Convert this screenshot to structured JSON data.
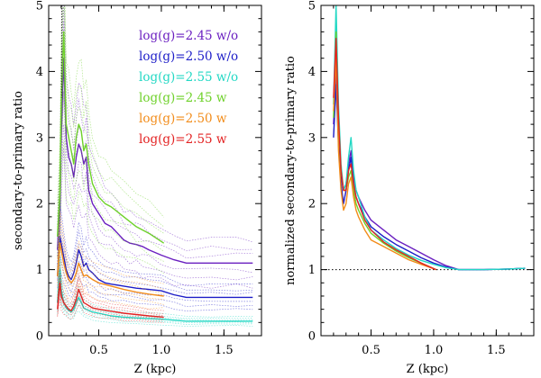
{
  "chart_data": [
    {
      "type": "line",
      "xlabel": "Z (kpc)",
      "ylabel": "secondary-to-primary ratio",
      "xlim": [
        0.1,
        1.8
      ],
      "ylim": [
        0,
        5
      ],
      "xticks": [
        0.5,
        1.0,
        1.5
      ],
      "xtick_labels": [
        "0.5",
        "1.0",
        "1.5"
      ],
      "yticks": [
        0,
        1,
        2,
        3,
        4,
        5
      ],
      "ytick_labels": [
        "0",
        "1",
        "2",
        "3",
        "4",
        "5"
      ],
      "legend_position": "top-right",
      "legend": [
        {
          "label": "log(g)=2.45  w/o",
          "color": "#6a1fc0"
        },
        {
          "label": "log(g)=2.50  w/o",
          "color": "#1c1cc8"
        },
        {
          "label": "log(g)=2.55  w/o",
          "color": "#22d8c4"
        },
        {
          "label": "log(g)=2.45  w",
          "color": "#6ed12a"
        },
        {
          "label": "log(g)=2.50  w",
          "color": "#f28c1a"
        },
        {
          "label": "log(g)=2.55  w",
          "color": "#e32222"
        }
      ],
      "series": [
        {
          "name": "log(g)=2.45 w/o",
          "color": "#6a1fc0",
          "x": [
            0.17,
            0.19,
            0.2,
            0.22,
            0.24,
            0.26,
            0.28,
            0.3,
            0.32,
            0.34,
            0.36,
            0.38,
            0.4,
            0.42,
            0.45,
            0.5,
            0.55,
            0.6,
            0.65,
            0.7,
            0.75,
            0.8,
            0.85,
            0.9,
            1.0,
            1.1,
            1.2,
            1.4,
            1.6,
            1.73
          ],
          "y": [
            1.3,
            2.0,
            3.0,
            4.2,
            3.0,
            2.7,
            2.6,
            2.4,
            2.7,
            2.9,
            2.8,
            2.6,
            2.7,
            2.2,
            2.0,
            1.85,
            1.7,
            1.65,
            1.55,
            1.45,
            1.4,
            1.38,
            1.35,
            1.3,
            1.22,
            1.15,
            1.1,
            1.1,
            1.1,
            1.1
          ]
        },
        {
          "name": "log(g)=2.50 w/o",
          "color": "#1c1cc8",
          "x": [
            0.17,
            0.19,
            0.2,
            0.22,
            0.24,
            0.26,
            0.28,
            0.3,
            0.32,
            0.34,
            0.36,
            0.38,
            0.4,
            0.42,
            0.45,
            0.5,
            0.55,
            0.6,
            0.7,
            0.8,
            0.9,
            1.0,
            1.1,
            1.2,
            1.4,
            1.6,
            1.73
          ],
          "y": [
            0.9,
            1.5,
            1.4,
            1.2,
            1.0,
            0.9,
            0.85,
            0.95,
            1.1,
            1.3,
            1.2,
            1.05,
            1.1,
            1.0,
            0.95,
            0.85,
            0.8,
            0.78,
            0.75,
            0.72,
            0.7,
            0.68,
            0.62,
            0.58,
            0.58,
            0.58,
            0.58
          ]
        },
        {
          "name": "log(g)=2.55 w/o",
          "color": "#22d8c4",
          "x": [
            0.17,
            0.19,
            0.2,
            0.22,
            0.24,
            0.26,
            0.28,
            0.3,
            0.32,
            0.34,
            0.36,
            0.38,
            0.4,
            0.45,
            0.5,
            0.6,
            0.7,
            0.8,
            0.9,
            1.0,
            1.2,
            1.4,
            1.6,
            1.73
          ],
          "y": [
            0.5,
            1.0,
            0.7,
            0.5,
            0.42,
            0.38,
            0.36,
            0.4,
            0.5,
            0.58,
            0.5,
            0.42,
            0.4,
            0.36,
            0.34,
            0.3,
            0.28,
            0.27,
            0.26,
            0.25,
            0.22,
            0.22,
            0.22,
            0.22
          ]
        },
        {
          "name": "log(g)=2.45 w",
          "color": "#6ed12a",
          "x": [
            0.17,
            0.19,
            0.2,
            0.22,
            0.24,
            0.26,
            0.28,
            0.3,
            0.32,
            0.34,
            0.36,
            0.38,
            0.4,
            0.42,
            0.45,
            0.5,
            0.55,
            0.6,
            0.7,
            0.8,
            0.9,
            1.02
          ],
          "y": [
            1.5,
            2.2,
            3.5,
            4.6,
            3.2,
            3.0,
            2.8,
            2.6,
            3.0,
            3.2,
            3.1,
            2.8,
            2.9,
            2.6,
            2.3,
            2.1,
            2.0,
            1.95,
            1.8,
            1.65,
            1.55,
            1.4
          ]
        },
        {
          "name": "log(g)=2.50 w",
          "color": "#f28c1a",
          "x": [
            0.17,
            0.19,
            0.2,
            0.22,
            0.24,
            0.26,
            0.28,
            0.3,
            0.32,
            0.34,
            0.36,
            0.38,
            0.4,
            0.45,
            0.5,
            0.6,
            0.7,
            0.8,
            0.9,
            1.02
          ],
          "y": [
            0.9,
            1.4,
            1.3,
            1.1,
            0.95,
            0.85,
            0.8,
            0.85,
            0.95,
            1.1,
            1.0,
            0.9,
            0.92,
            0.85,
            0.8,
            0.75,
            0.7,
            0.66,
            0.63,
            0.6
          ]
        },
        {
          "name": "log(g)=2.55 w",
          "color": "#e32222",
          "x": [
            0.17,
            0.19,
            0.2,
            0.22,
            0.24,
            0.26,
            0.28,
            0.3,
            0.32,
            0.34,
            0.36,
            0.38,
            0.4,
            0.45,
            0.5,
            0.6,
            0.7,
            0.8,
            0.9,
            1.02
          ],
          "y": [
            0.4,
            0.8,
            0.6,
            0.5,
            0.45,
            0.4,
            0.38,
            0.45,
            0.55,
            0.7,
            0.6,
            0.5,
            0.48,
            0.42,
            0.4,
            0.37,
            0.34,
            0.32,
            0.3,
            0.28
          ]
        }
      ]
    },
    {
      "type": "line",
      "xlabel": "Z (kpc)",
      "ylabel": "normalized secondary-to-primary ratio",
      "xlim": [
        0.1,
        1.8
      ],
      "ylim": [
        0,
        5
      ],
      "xticks": [
        0.5,
        1.0,
        1.5
      ],
      "xtick_labels": [
        "0.5",
        "1.0",
        "1.5"
      ],
      "yticks": [
        0,
        1,
        2,
        3,
        4,
        5
      ],
      "ytick_labels": [
        "0",
        "1",
        "2",
        "3",
        "4",
        "5"
      ],
      "reference_line": {
        "y": 1,
        "style": "dotted"
      },
      "series": [
        {
          "name": "log(g)=2.45 w/o",
          "color": "#6a1fc0",
          "x": [
            0.2,
            0.22,
            0.24,
            0.26,
            0.28,
            0.3,
            0.32,
            0.34,
            0.36,
            0.38,
            0.4,
            0.45,
            0.5,
            0.6,
            0.7,
            0.8,
            0.9,
            1.0,
            1.1,
            1.2,
            1.4,
            1.6,
            1.73
          ],
          "y": [
            3.2,
            4.0,
            3.0,
            2.4,
            2.2,
            2.3,
            2.6,
            2.8,
            2.4,
            2.2,
            2.1,
            1.9,
            1.75,
            1.6,
            1.45,
            1.35,
            1.25,
            1.15,
            1.06,
            1.0,
            1.0,
            1.01,
            1.02
          ]
        },
        {
          "name": "log(g)=2.50 w/o",
          "color": "#1c1cc8",
          "x": [
            0.2,
            0.22,
            0.24,
            0.26,
            0.28,
            0.3,
            0.32,
            0.34,
            0.36,
            0.38,
            0.4,
            0.45,
            0.5,
            0.6,
            0.7,
            0.8,
            0.9,
            1.0,
            1.1,
            1.2,
            1.4,
            1.6,
            1.73
          ],
          "y": [
            3.0,
            3.8,
            2.9,
            2.3,
            2.0,
            2.2,
            2.5,
            2.7,
            2.3,
            2.1,
            2.0,
            1.8,
            1.65,
            1.5,
            1.38,
            1.28,
            1.18,
            1.1,
            1.04,
            1.0,
            1.0,
            1.01,
            1.02
          ]
        },
        {
          "name": "log(g)=2.55 w/o",
          "color": "#22d8c4",
          "x": [
            0.2,
            0.22,
            0.24,
            0.26,
            0.28,
            0.3,
            0.32,
            0.34,
            0.36,
            0.38,
            0.4,
            0.45,
            0.5,
            0.6,
            0.7,
            0.8,
            0.9,
            1.0,
            1.1,
            1.2,
            1.4,
            1.6,
            1.73
          ],
          "y": [
            3.5,
            5.0,
            3.5,
            2.6,
            2.2,
            2.3,
            2.7,
            3.0,
            2.5,
            2.2,
            2.1,
            1.8,
            1.6,
            1.45,
            1.32,
            1.22,
            1.14,
            1.08,
            1.03,
            1.0,
            1.0,
            1.01,
            1.02
          ]
        },
        {
          "name": "log(g)=2.45 w",
          "color": "#6ed12a",
          "x": [
            0.2,
            0.22,
            0.24,
            0.26,
            0.28,
            0.3,
            0.32,
            0.34,
            0.36,
            0.38,
            0.4,
            0.45,
            0.5,
            0.6,
            0.7,
            0.8,
            0.9,
            1.02
          ],
          "y": [
            3.3,
            4.6,
            3.2,
            2.5,
            2.2,
            2.2,
            2.4,
            2.5,
            2.2,
            2.0,
            1.9,
            1.7,
            1.55,
            1.4,
            1.28,
            1.18,
            1.1,
            1.0
          ]
        },
        {
          "name": "log(g)=2.50 w",
          "color": "#f28c1a",
          "x": [
            0.2,
            0.22,
            0.24,
            0.26,
            0.28,
            0.3,
            0.32,
            0.34,
            0.36,
            0.38,
            0.4,
            0.45,
            0.5,
            0.6,
            0.7,
            0.8,
            0.9,
            1.02
          ],
          "y": [
            3.4,
            4.2,
            2.8,
            2.2,
            1.9,
            2.0,
            2.3,
            2.4,
            2.1,
            1.9,
            1.8,
            1.6,
            1.45,
            1.35,
            1.25,
            1.15,
            1.08,
            1.0
          ]
        },
        {
          "name": "log(g)=2.55 w",
          "color": "#e32222",
          "x": [
            0.2,
            0.22,
            0.24,
            0.26,
            0.28,
            0.3,
            0.32,
            0.34,
            0.36,
            0.38,
            0.4,
            0.45,
            0.5,
            0.6,
            0.7,
            0.8,
            0.9,
            1.02
          ],
          "y": [
            3.6,
            4.5,
            3.3,
            2.5,
            2.2,
            2.2,
            2.5,
            2.6,
            2.3,
            2.1,
            2.0,
            1.75,
            1.6,
            1.42,
            1.3,
            1.2,
            1.1,
            1.0
          ]
        }
      ]
    }
  ]
}
